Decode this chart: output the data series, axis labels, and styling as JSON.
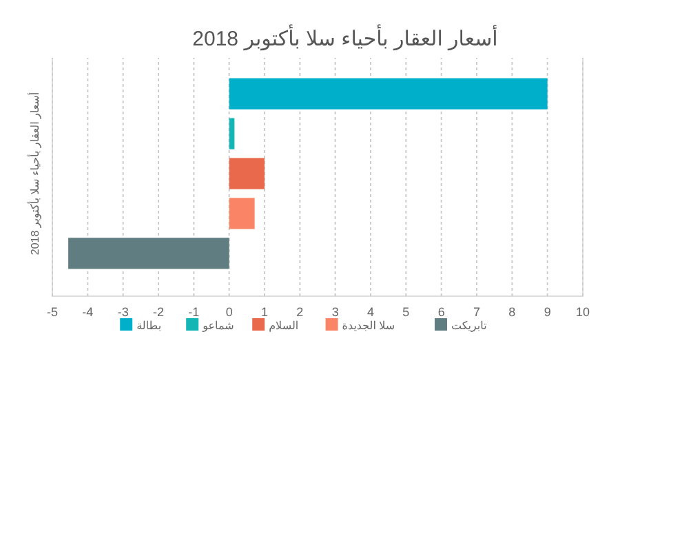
{
  "chart_data": {
    "type": "bar",
    "orientation": "horizontal",
    "title": "أسعار العقار بأحياء سلا بأكتوبر 2018",
    "ylabel": "أسعار العقار بأحياء سلا بأكتوبر 2018",
    "categories": [
      null
    ],
    "series": [
      {
        "name": "بطالة",
        "color": "#00afc9",
        "values": [
          9
        ]
      },
      {
        "name": "شماعو",
        "color": "#13b5b5",
        "values": [
          0.15
        ]
      },
      {
        "name": "السلام",
        "color": "#e8694c",
        "values": [
          1
        ]
      },
      {
        "name": "سلا الجديدة",
        "color": "#fa8466",
        "values": [
          0.72
        ]
      },
      {
        "name": "تابريكت",
        "color": "#607d82",
        "values": [
          -4.55
        ]
      }
    ],
    "xlim": [
      -5,
      10
    ],
    "xticks": [
      -5,
      -4,
      -3,
      -2,
      -1,
      0,
      1,
      2,
      3,
      4,
      5,
      6,
      7,
      8,
      9,
      10
    ],
    "grid": "x",
    "legend": "bottom"
  }
}
